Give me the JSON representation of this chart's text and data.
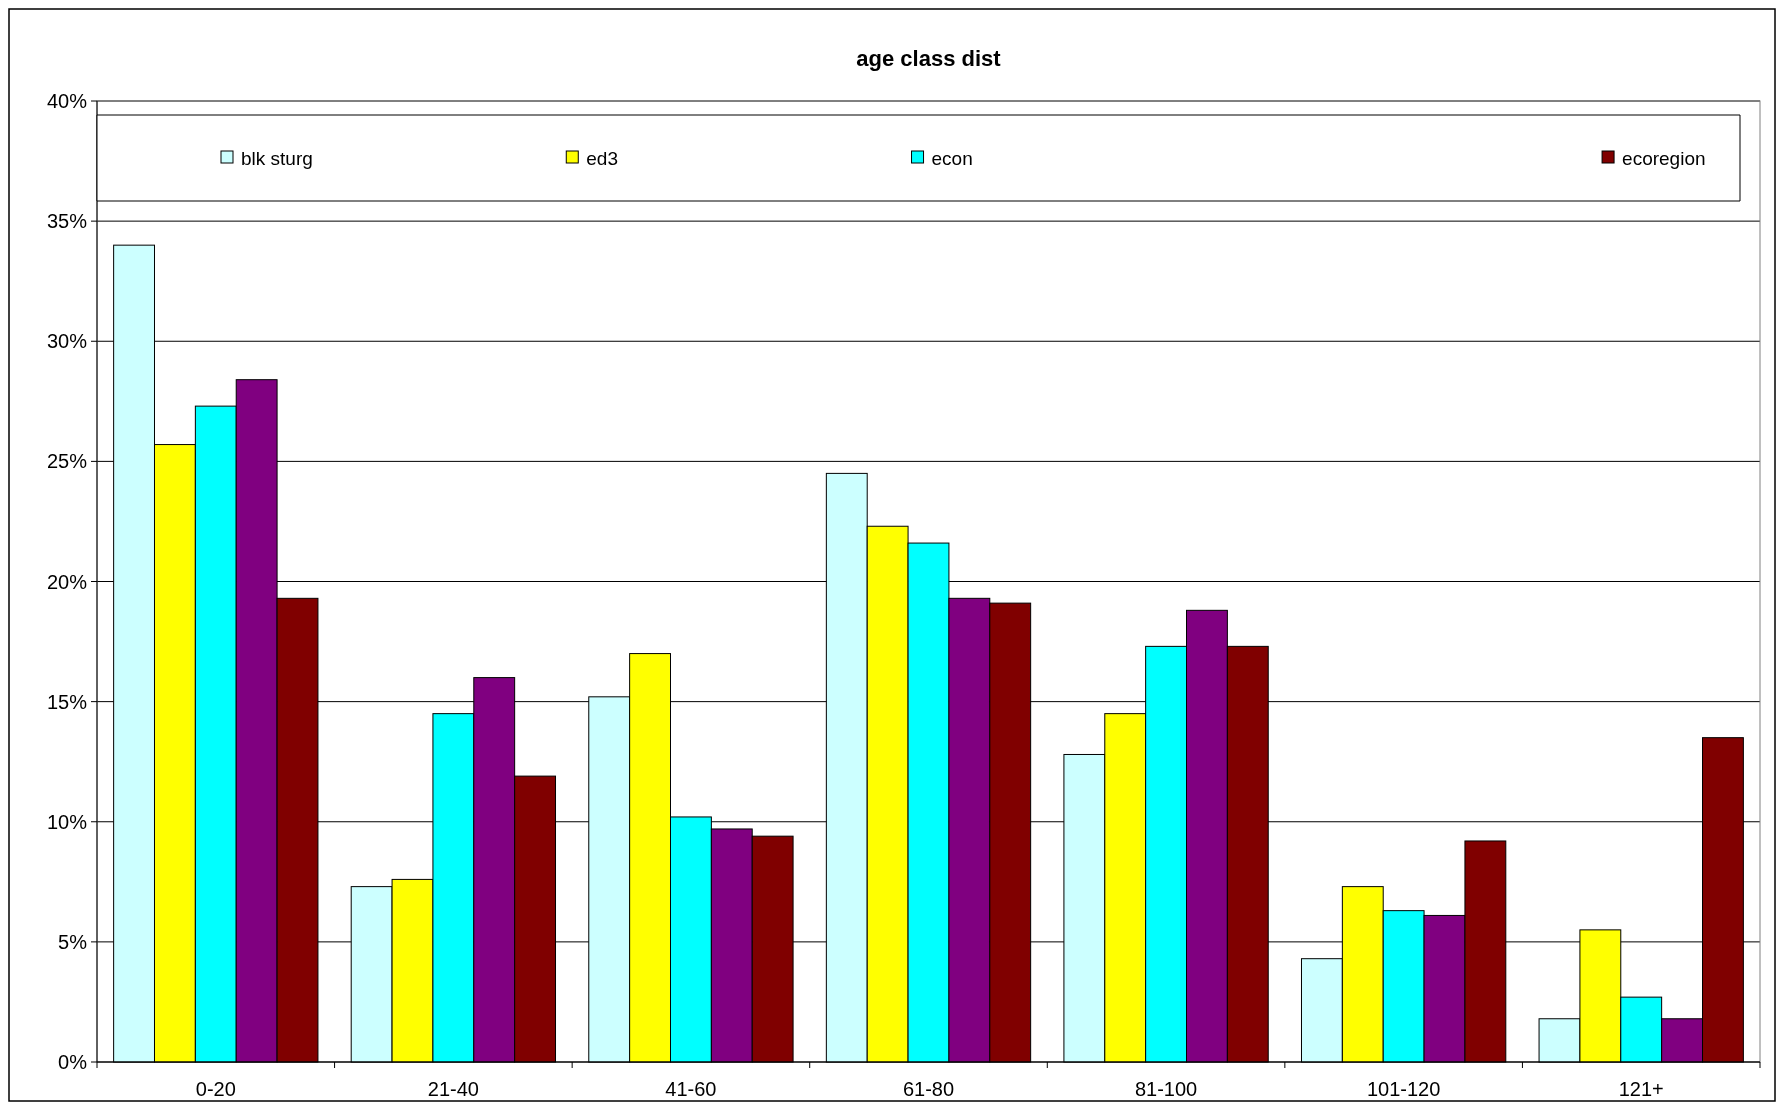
{
  "chart_data": {
    "type": "bar",
    "title": "age class dist",
    "categories": [
      "0-20",
      "21-40",
      "41-60",
      "61-80",
      "81-100",
      "101-120",
      "121+"
    ],
    "series": [
      {
        "name": "blk sturg",
        "color": "#ccffff",
        "values": [
          34.0,
          7.3,
          15.2,
          24.5,
          12.8,
          4.3,
          1.8
        ]
      },
      {
        "name": "ed3",
        "color": "#ffff00",
        "values": [
          25.7,
          7.6,
          17.0,
          22.3,
          14.5,
          7.3,
          5.5
        ]
      },
      {
        "name": "econ",
        "color": "#00ffff",
        "values": [
          27.3,
          14.5,
          10.2,
          21.6,
          17.3,
          6.3,
          2.7
        ]
      },
      {
        "color": "#800080",
        "values": [
          28.4,
          16.0,
          9.7,
          19.3,
          18.8,
          6.1,
          1.8
        ]
      },
      {
        "name": "ecoregion",
        "color": "#800000",
        "values": [
          19.3,
          11.9,
          9.4,
          19.1,
          17.3,
          9.2,
          13.5
        ]
      }
    ],
    "ylim": [
      0,
      40
    ],
    "yticks": [
      {
        "value": 0,
        "label": "0%"
      },
      {
        "value": 5,
        "label": "5%"
      },
      {
        "value": 10,
        "label": "10%"
      },
      {
        "value": 15,
        "label": "15%"
      },
      {
        "value": 20,
        "label": "20%"
      },
      {
        "value": 25,
        "label": "25%"
      },
      {
        "value": 30,
        "label": "30%"
      },
      {
        "value": 35,
        "label": "35%"
      },
      {
        "value": 40,
        "label": "40%"
      }
    ],
    "grid": "y",
    "legend": "top"
  }
}
